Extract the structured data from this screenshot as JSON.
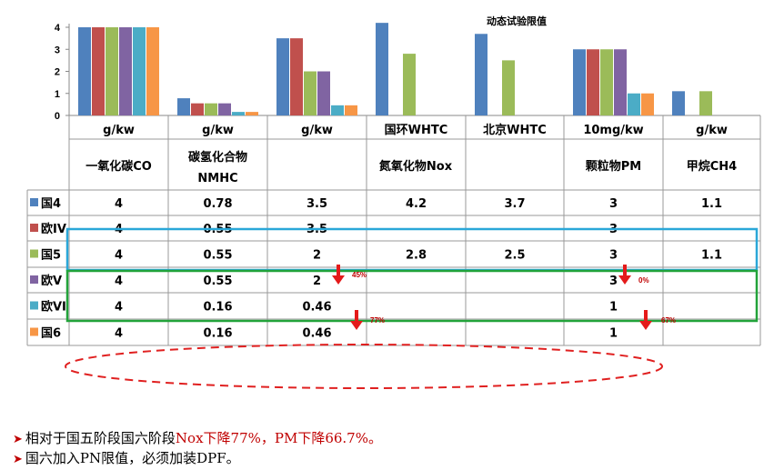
{
  "chart_data": {
    "type": "bar",
    "title": "动态试验限值",
    "ylim": [
      0,
      4
    ],
    "yticks": [
      "0",
      "1",
      "2",
      "3",
      "4"
    ],
    "legend_placement": "table-rows",
    "groups": [
      {
        "unit": "g/kw",
        "name": "一氧化碳CO",
        "name2": ""
      },
      {
        "unit": "g/kw",
        "name": "碳氢化合物",
        "name2": "NMHC"
      },
      {
        "unit": "g/kw",
        "name": "",
        "name2": ""
      },
      {
        "unit": "国环WHTC",
        "name": "氮氧化物Nox",
        "name2": ""
      },
      {
        "unit": "北京WHTC",
        "name": "",
        "name2": ""
      },
      {
        "unit": "10mg/kw",
        "name": "颗粒物PM",
        "name2": ""
      },
      {
        "unit": "g/kw",
        "name": "甲烷CH4",
        "name2": ""
      }
    ],
    "series": [
      {
        "name": "国4",
        "color": "#4f81bd",
        "values": [
          4,
          0.78,
          3.5,
          4.2,
          3.7,
          3,
          1.1
        ],
        "labels": [
          "4",
          "0.78",
          "3.5",
          "4.2",
          "3.7",
          "3",
          "1.1"
        ]
      },
      {
        "name": "欧IV",
        "color": "#c0504d",
        "values": [
          4,
          0.55,
          3.5,
          null,
          null,
          3,
          null
        ],
        "labels": [
          "4",
          "0.55",
          "3.5",
          "",
          "",
          "3",
          ""
        ]
      },
      {
        "name": "国5",
        "color": "#9bbb59",
        "values": [
          4,
          0.55,
          2,
          2.8,
          2.5,
          3,
          1.1
        ],
        "labels": [
          "4",
          "0.55",
          "2",
          "2.8",
          "2.5",
          "3",
          "1.1"
        ]
      },
      {
        "name": "欧V",
        "color": "#8064a2",
        "values": [
          4,
          0.55,
          2,
          null,
          null,
          3,
          null
        ],
        "labels": [
          "4",
          "0.55",
          "2",
          "",
          "",
          "3",
          ""
        ]
      },
      {
        "name": "欧VI",
        "color": "#4bacc6",
        "values": [
          4,
          0.16,
          0.46,
          null,
          null,
          1,
          null
        ],
        "labels": [
          "4",
          "0.16",
          "0.46",
          "",
          "",
          "1",
          ""
        ]
      },
      {
        "name": "国6",
        "color": "#f79646",
        "values": [
          4,
          0.16,
          0.46,
          null,
          null,
          1,
          null
        ],
        "labels": [
          "4",
          "0.16",
          "0.46",
          "",
          "",
          "1",
          ""
        ]
      }
    ],
    "annotations": [
      "45%",
      "77%",
      "0%",
      "67%"
    ]
  },
  "footnotes": {
    "line1_black": "相对于国五阶段国六阶段",
    "line1_red": "Nox下降77%，PM下降66.7%。",
    "line2": "国六加入PN限值，必须加装DPF。"
  },
  "colors": {
    "accent_red": "#c00000",
    "highlight_blue": "#2aa7d8",
    "highlight_green": "#22a33a"
  }
}
